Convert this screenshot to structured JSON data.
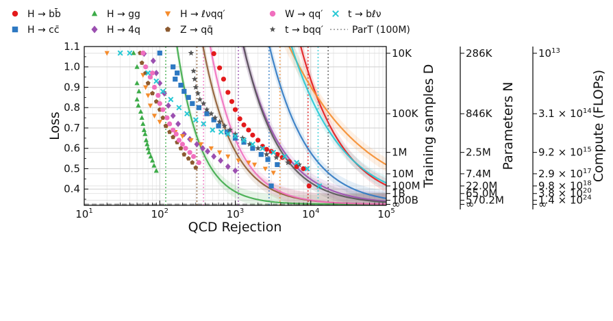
{
  "chart_data": {
    "type": "scatter",
    "title": "",
    "xlabel": "QCD Rejection",
    "ylabel": "Loss",
    "xscale": "log",
    "xlim": [
      10,
      100000
    ],
    "ylim": [
      0.32,
      1.1
    ],
    "x_ticks": [
      {
        "value": 10,
        "base": "10",
        "exp": "1"
      },
      {
        "value": 100,
        "base": "10",
        "exp": "2"
      },
      {
        "value": 1000,
        "base": "10",
        "exp": "3"
      },
      {
        "value": 10000,
        "base": "10",
        "exp": "4"
      },
      {
        "value": 100000,
        "base": "10",
        "exp": "5"
      }
    ],
    "y_ticks": [
      {
        "value": 0.4,
        "label": "0.4"
      },
      {
        "value": 0.5,
        "label": "0.5"
      },
      {
        "value": 0.6,
        "label": "0.6"
      },
      {
        "value": 0.7,
        "label": "0.7"
      },
      {
        "value": 0.8,
        "label": "0.8"
      },
      {
        "value": 0.9,
        "label": "0.9"
      },
      {
        "value": 1.0,
        "label": "1.0"
      },
      {
        "value": 1.1,
        "label": "1.1"
      }
    ],
    "grid": true,
    "legend_position": "top",
    "legend_columns": 6,
    "floor_loss": 0.325,
    "right_axes": [
      {
        "label": "Training samples D",
        "ticks": [
          {
            "value": 1.067,
            "label": "10K"
          },
          {
            "value": 0.77,
            "label": "100K"
          },
          {
            "value": 0.58,
            "label": "1M"
          },
          {
            "value": 0.475,
            "label": "10M"
          },
          {
            "value": 0.415,
            "label": "100M"
          },
          {
            "value": 0.378,
            "label": "1B"
          },
          {
            "value": 0.345,
            "label": "100B"
          },
          {
            "value": 0.325,
            "label": "∞"
          }
        ]
      },
      {
        "label": "Parameters N",
        "ticks": [
          {
            "value": 1.067,
            "label": "286K"
          },
          {
            "value": 0.77,
            "label": "846K"
          },
          {
            "value": 0.58,
            "label": "2.5M"
          },
          {
            "value": 0.475,
            "label": "7.4M"
          },
          {
            "value": 0.415,
            "label": "22.0M"
          },
          {
            "value": 0.378,
            "label": "65.0M"
          },
          {
            "value": 0.345,
            "label": "570.2M"
          },
          {
            "value": 0.325,
            "label": "∞"
          }
        ]
      },
      {
        "label": "Compute (FLOPs)",
        "ticks": [
          {
            "value": 1.067,
            "label": "10",
            "exp": "13"
          },
          {
            "value": 0.77,
            "label": "3.1 × 10",
            "exp": "14"
          },
          {
            "value": 0.58,
            "label": "9.2 × 10",
            "exp": "15"
          },
          {
            "value": 0.475,
            "label": "2.9 × 10",
            "exp": "17"
          },
          {
            "value": 0.415,
            "label": "9.8 × 10",
            "exp": "18"
          },
          {
            "value": 0.378,
            "label": "3.8 × 10",
            "exp": "20"
          },
          {
            "value": 0.345,
            "label": "1.4 × 10",
            "exp": "24"
          },
          {
            "value": 0.325,
            "label": "∞"
          }
        ]
      }
    ],
    "series": [
      {
        "name": "Hbb",
        "label": "H → bb̄",
        "color": "#e31a1c",
        "marker": "circle",
        "parT": 9200,
        "curve": {
          "A": 0.64,
          "b": 2.9,
          "x0": 10000,
          "k": 0.26
        },
        "points": [
          [
            520,
            1.065
          ],
          [
            620,
            0.995
          ],
          [
            700,
            0.94
          ],
          [
            800,
            0.875
          ],
          [
            900,
            0.83
          ],
          [
            1000,
            0.79
          ],
          [
            1150,
            0.745
          ],
          [
            1300,
            0.715
          ],
          [
            1500,
            0.69
          ],
          [
            1700,
            0.665
          ],
          [
            2000,
            0.64
          ],
          [
            2300,
            0.61
          ],
          [
            2600,
            0.595
          ],
          [
            3000,
            0.585
          ],
          [
            3600,
            0.57
          ],
          [
            4200,
            0.555
          ],
          [
            5200,
            0.535
          ],
          [
            6500,
            0.51
          ],
          [
            8000,
            0.5
          ],
          [
            9500,
            0.415
          ]
        ]
      },
      {
        "name": "Hcc",
        "label": "H → cc̄",
        "color": "#2d78c2",
        "marker": "square",
        "parT": 2800,
        "curve": {
          "A": 0.5,
          "b": 3.3,
          "x0": 5000,
          "k": 0.28
        },
        "points": [
          [
            100,
            1.068
          ],
          [
            150,
            1.0
          ],
          [
            170,
            0.97
          ],
          [
            160,
            0.94
          ],
          [
            190,
            0.91
          ],
          [
            210,
            0.88
          ],
          [
            240,
            0.85
          ],
          [
            270,
            0.82
          ],
          [
            330,
            0.8
          ],
          [
            420,
            0.77
          ],
          [
            520,
            0.74
          ],
          [
            600,
            0.71
          ],
          [
            780,
            0.68
          ],
          [
            1000,
            0.65
          ],
          [
            1300,
            0.63
          ],
          [
            1700,
            0.6
          ],
          [
            2200,
            0.57
          ],
          [
            2700,
            0.545
          ],
          [
            3600,
            0.52
          ],
          [
            3000,
            0.415
          ]
        ]
      },
      {
        "name": "Hgg",
        "label": "H → gg",
        "color": "#3cab48",
        "marker": "triangle",
        "parT": 120,
        "curve": {
          "A": 1.0,
          "b": 5.0,
          "x0": 145,
          "k": 0.16
        },
        "points": [
          [
            45,
            1.068
          ],
          [
            50,
            1.0
          ],
          [
            50,
            0.92
          ],
          [
            53,
            0.88
          ],
          [
            50,
            0.84
          ],
          [
            52,
            0.81
          ],
          [
            56,
            0.78
          ],
          [
            58,
            0.75
          ],
          [
            60,
            0.72
          ],
          [
            62,
            0.69
          ],
          [
            64,
            0.67
          ],
          [
            66,
            0.64
          ],
          [
            68,
            0.62
          ],
          [
            70,
            0.6
          ],
          [
            72,
            0.58
          ],
          [
            76,
            0.56
          ],
          [
            80,
            0.54
          ],
          [
            84,
            0.515
          ],
          [
            90,
            0.49
          ]
        ]
      },
      {
        "name": "H4q",
        "label": "H → 4q",
        "color": "#9b4fb0",
        "marker": "diamond",
        "parT": 1100,
        "curve": {
          "A": 0.75,
          "b": 3.2,
          "x0": 1400,
          "k": 0.24
        },
        "points": [
          [
            62,
            1.065
          ],
          [
            82,
            1.03
          ],
          [
            90,
            0.97
          ],
          [
            100,
            0.92
          ],
          [
            115,
            0.87
          ],
          [
            130,
            0.81
          ],
          [
            150,
            0.76
          ],
          [
            175,
            0.72
          ],
          [
            210,
            0.67
          ],
          [
            250,
            0.645
          ],
          [
            310,
            0.62
          ],
          [
            370,
            0.6
          ],
          [
            430,
            0.585
          ],
          [
            520,
            0.56
          ],
          [
            640,
            0.54
          ],
          [
            800,
            0.51
          ],
          [
            1000,
            0.49
          ]
        ]
      },
      {
        "name": "Hlvqq",
        "label": "H → ℓνqq′",
        "color": "#f58c2c",
        "marker": "triangle-down",
        "parT": 3900,
        "curve": {
          "A": 0.55,
          "b": 1.7,
          "x0": 12000,
          "k": 0.33
        },
        "points": [
          [
            20,
            1.068
          ],
          [
            60,
            0.96
          ],
          [
            65,
            0.9
          ],
          [
            70,
            0.86
          ],
          [
            75,
            0.81
          ],
          [
            85,
            0.76
          ],
          [
            100,
            0.73
          ],
          [
            125,
            0.71
          ],
          [
            160,
            0.68
          ],
          [
            200,
            0.66
          ],
          [
            260,
            0.64
          ],
          [
            350,
            0.62
          ],
          [
            480,
            0.6
          ],
          [
            620,
            0.58
          ],
          [
            800,
            0.56
          ],
          [
            1100,
            0.54
          ],
          [
            1500,
            0.53
          ],
          [
            1800,
            0.52
          ],
          [
            2500,
            0.5
          ],
          [
            3200,
            0.48
          ]
        ]
      },
      {
        "name": "Zqq",
        "label": "Z → qq̄",
        "color": "#8c5a30",
        "marker": "pentagon",
        "parT": 310,
        "curve": {
          "A": 0.8,
          "b": 4.0,
          "x0": 380,
          "k": 0.2
        },
        "points": [
          [
            55,
            1.068
          ],
          [
            58,
            1.02
          ],
          [
            65,
            0.97
          ],
          [
            70,
            0.92
          ],
          [
            80,
            0.87
          ],
          [
            90,
            0.83
          ],
          [
            100,
            0.79
          ],
          [
            110,
            0.75
          ],
          [
            120,
            0.71
          ],
          [
            135,
            0.68
          ],
          [
            150,
            0.655
          ],
          [
            170,
            0.63
          ],
          [
            190,
            0.6
          ],
          [
            210,
            0.57
          ],
          [
            240,
            0.55
          ],
          [
            270,
            0.53
          ],
          [
            300,
            0.505
          ]
        ]
      },
      {
        "name": "Wqq",
        "label": "W → qq′",
        "color": "#f06fbe",
        "marker": "circle",
        "parT": 380,
        "curve": {
          "A": 0.85,
          "b": 4.2,
          "x0": 450,
          "k": 0.2
        },
        "points": [
          [
            60,
            1.068
          ],
          [
            65,
            1.0
          ],
          [
            80,
            0.97
          ],
          [
            75,
            0.95
          ],
          [
            85,
            0.9
          ],
          [
            95,
            0.86
          ],
          [
            100,
            0.82
          ],
          [
            110,
            0.79
          ],
          [
            125,
            0.75
          ],
          [
            135,
            0.72
          ],
          [
            150,
            0.69
          ],
          [
            165,
            0.67
          ],
          [
            180,
            0.64
          ],
          [
            200,
            0.62
          ],
          [
            220,
            0.6
          ],
          [
            250,
            0.58
          ],
          [
            280,
            0.56
          ],
          [
            330,
            0.53
          ]
        ]
      },
      {
        "name": "tbqq",
        "label": "t → bqq′",
        "color": "#555555",
        "marker": "star",
        "parT": 17000,
        "curve": {
          "A": 0.6,
          "b": 3.5,
          "x0": 1800,
          "k": 0.25
        },
        "points": [
          [
            260,
            1.068
          ],
          [
            280,
            0.98
          ],
          [
            290,
            0.94
          ],
          [
            300,
            0.9
          ],
          [
            320,
            0.87
          ],
          [
            340,
            0.84
          ],
          [
            380,
            0.82
          ],
          [
            420,
            0.79
          ],
          [
            480,
            0.77
          ],
          [
            540,
            0.75
          ],
          [
            620,
            0.73
          ],
          [
            720,
            0.71
          ],
          [
            850,
            0.69
          ],
          [
            1000,
            0.67
          ],
          [
            1250,
            0.65
          ],
          [
            1550,
            0.62
          ],
          [
            2000,
            0.6
          ],
          [
            2600,
            0.57
          ],
          [
            3500,
            0.555
          ],
          [
            5000,
            0.53
          ],
          [
            7000,
            0.52
          ]
        ]
      },
      {
        "name": "tblv",
        "label": "t → bℓν",
        "color": "#27c8d4",
        "marker": "x",
        "parT": 12500,
        "curve": {
          "A": 0.55,
          "b": 2.5,
          "x0": 10000,
          "k": 0.3
        },
        "points": [
          [
            30,
            1.068
          ],
          [
            40,
            1.068
          ],
          [
            70,
            0.97
          ],
          [
            90,
            0.93
          ],
          [
            110,
            0.88
          ],
          [
            140,
            0.84
          ],
          [
            180,
            0.8
          ],
          [
            230,
            0.77
          ],
          [
            300,
            0.74
          ],
          [
            380,
            0.72
          ],
          [
            500,
            0.69
          ],
          [
            650,
            0.68
          ],
          [
            800,
            0.67
          ],
          [
            1000,
            0.66
          ],
          [
            1300,
            0.64
          ],
          [
            1700,
            0.62
          ],
          [
            2300,
            0.6
          ],
          [
            3200,
            0.58
          ],
          [
            4500,
            0.56
          ],
          [
            6500,
            0.53
          ],
          [
            9000,
            0.5
          ],
          [
            13000,
            0.415
          ]
        ]
      }
    ],
    "reference": {
      "name": "ParT",
      "label": "ParT (100M)",
      "color": "#aaaaaa",
      "style": "dotted"
    }
  }
}
